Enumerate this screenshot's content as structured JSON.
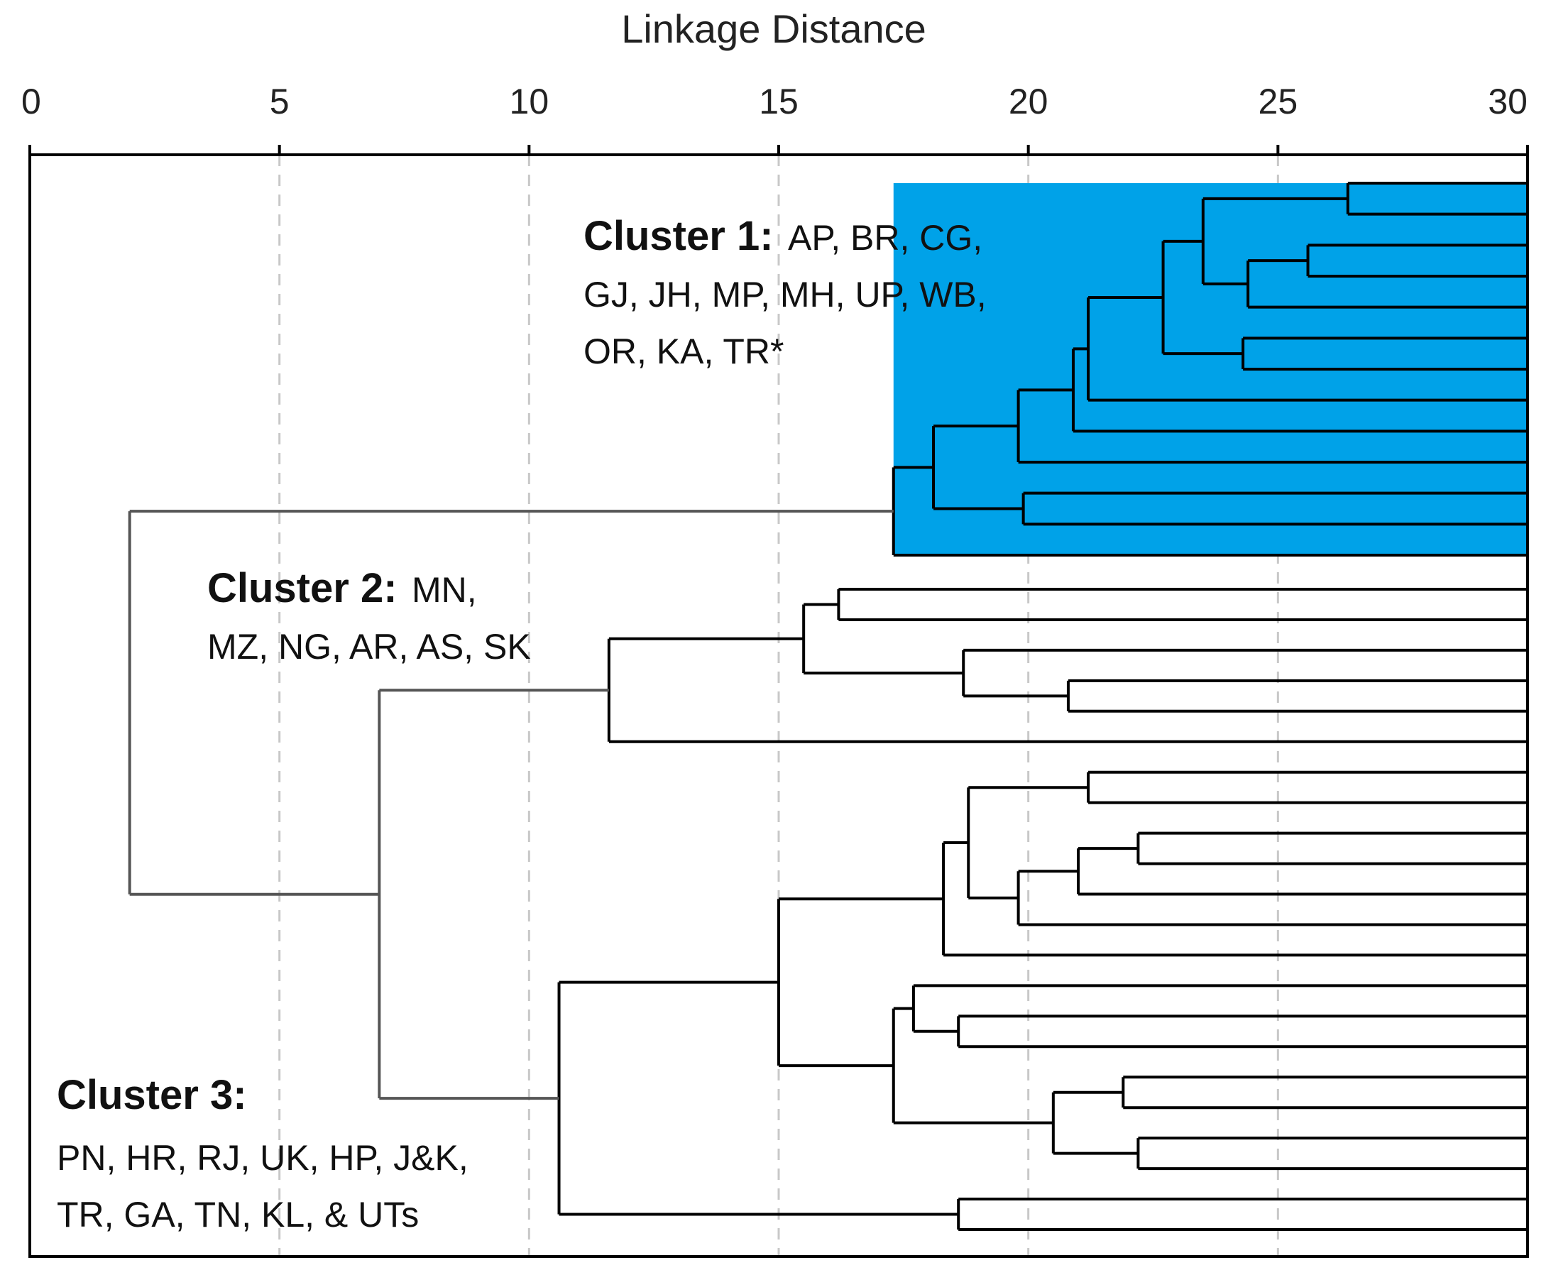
{
  "chart_data": {
    "type": "dendrogram",
    "title": "",
    "xlabel": "Linkage Distance",
    "x_ticks": [
      "0",
      "5",
      "10",
      "15",
      "20",
      "25",
      "30"
    ],
    "xlim": [
      0,
      30
    ],
    "grid": "vertical dashed",
    "leaves_count": 35,
    "highlight_color": "#00a2e8",
    "line_color": "#000000",
    "clusters": [
      {
        "name": "Cluster 1:",
        "members_lines": [
          "AP, BR, CG,",
          "GJ, JH, MP, MH, UP, WB,",
          "OR, KA, TR*"
        ],
        "highlighted": true
      },
      {
        "name": "Cluster 2:",
        "members_lines": [
          "MN,",
          "MZ, NG, AR, AS, SK"
        ],
        "highlighted": false
      },
      {
        "name": "Cluster 3:",
        "members_lines": [
          "PN, HR, RJ, UK, HP, J&K,",
          "TR, GA, TN, KL, & UTs"
        ],
        "highlighted": false
      }
    ],
    "merges": [
      {
        "id": "a1",
        "left": "L0",
        "right": "L1",
        "height": 26.4
      },
      {
        "id": "a2",
        "left": "L2",
        "right": "L3",
        "height": 25.6
      },
      {
        "id": "a3",
        "left": "a2",
        "right": "L4",
        "height": 24.4
      },
      {
        "id": "a4",
        "left": "a1",
        "right": "a3",
        "height": 23.5
      },
      {
        "id": "a5",
        "left": "L5",
        "right": "L6",
        "height": 24.3
      },
      {
        "id": "a6",
        "left": "a4",
        "right": "a5",
        "height": 22.7
      },
      {
        "id": "a7",
        "left": "a6",
        "right": "L7",
        "height": 21.2
      },
      {
        "id": "a8",
        "left": "a7",
        "right": "L8",
        "height": 20.9
      },
      {
        "id": "a9",
        "left": "a8",
        "right": "L9",
        "height": 19.8
      },
      {
        "id": "a10",
        "left": "L10",
        "right": "L11",
        "height": 19.9
      },
      {
        "id": "a11",
        "left": "a9",
        "right": "a10",
        "height": 18.1
      },
      {
        "id": "a12",
        "left": "a11",
        "right": "L12",
        "height": 17.3
      },
      {
        "id": "b1",
        "left": "L13",
        "right": "L14",
        "height": 16.2
      },
      {
        "id": "b2",
        "left": "L16",
        "right": "L17",
        "height": 20.8
      },
      {
        "id": "b3",
        "left": "L15",
        "right": "b2",
        "height": 18.7
      },
      {
        "id": "b4",
        "left": "b1",
        "right": "b3",
        "height": 15.5
      },
      {
        "id": "b5",
        "left": "b4",
        "right": "L18",
        "height": 11.6
      },
      {
        "id": "c1",
        "left": "L19",
        "right": "L20",
        "height": 21.2
      },
      {
        "id": "c2",
        "left": "L21",
        "right": "L22",
        "height": 22.2
      },
      {
        "id": "c3",
        "left": "c2",
        "right": "L23",
        "height": 21.0
      },
      {
        "id": "c4",
        "left": "c3",
        "right": "L24",
        "height": 19.8
      },
      {
        "id": "c5",
        "left": "c1",
        "right": "c4",
        "height": 18.8
      },
      {
        "id": "c6",
        "left": "c5",
        "right": "L25",
        "height": 18.3
      },
      {
        "id": "c7",
        "left": "L27",
        "right": "L28",
        "height": 18.6
      },
      {
        "id": "c8",
        "left": "L26",
        "right": "c7",
        "height": 17.7
      },
      {
        "id": "c9",
        "left": "L29",
        "right": "L30",
        "height": 21.9
      },
      {
        "id": "c10",
        "left": "L31",
        "right": "L32",
        "height": 22.2
      },
      {
        "id": "c11",
        "left": "c9",
        "right": "c10",
        "height": 20.5
      },
      {
        "id": "c12",
        "left": "c8",
        "right": "c11",
        "height": 17.3
      },
      {
        "id": "c13",
        "left": "c6",
        "right": "c12",
        "height": 15.0
      },
      {
        "id": "c14",
        "left": "L33",
        "right": "L34",
        "height": 18.6
      },
      {
        "id": "c15",
        "left": "c13",
        "right": "c14",
        "height": 10.6
      },
      {
        "id": "d1",
        "left": "b5",
        "right": "c15",
        "height": 7.0
      },
      {
        "id": "root",
        "left": "a12",
        "right": "d1",
        "height": 2.0
      }
    ]
  }
}
